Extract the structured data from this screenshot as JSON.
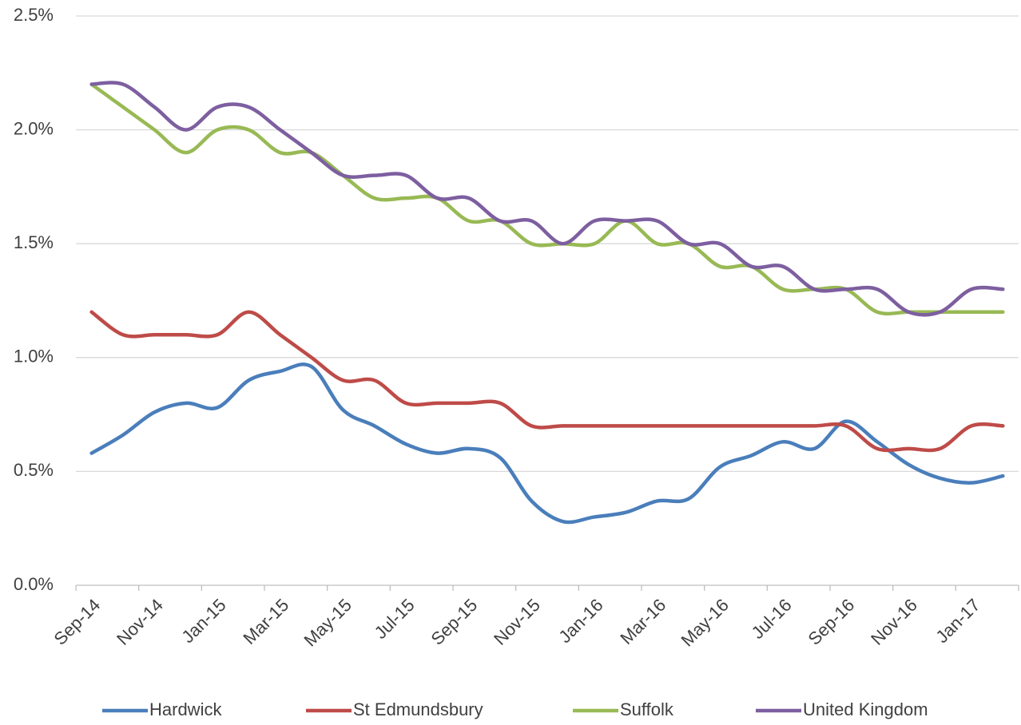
{
  "chart_data": {
    "type": "line",
    "categories": [
      "Sep-14",
      null,
      "Nov-14",
      null,
      "Jan-15",
      null,
      "Mar-15",
      null,
      "May-15",
      null,
      "Jul-15",
      null,
      "Sep-15",
      null,
      "Nov-15",
      null,
      "Jan-16",
      null,
      "Mar-16",
      null,
      "May-16",
      null,
      "Jul-16",
      null,
      "Sep-16",
      null,
      "Nov-16",
      null,
      "Jan-17",
      null
    ],
    "series": [
      {
        "name": "Hardwick",
        "color": "#4a7ebb",
        "values": [
          0.58,
          0.66,
          0.76,
          0.8,
          0.78,
          0.9,
          0.94,
          0.96,
          0.77,
          0.7,
          0.62,
          0.58,
          0.6,
          0.56,
          0.37,
          0.28,
          0.3,
          0.32,
          0.37,
          0.38,
          0.52,
          0.57,
          0.63,
          0.6,
          0.72,
          0.63,
          0.53,
          0.47,
          0.45,
          0.48
        ]
      },
      {
        "name": "St Edmundsbury",
        "color": "#be4b48",
        "values": [
          1.2,
          1.1,
          1.1,
          1.1,
          1.1,
          1.2,
          1.1,
          1.0,
          0.9,
          0.9,
          0.8,
          0.8,
          0.8,
          0.8,
          0.7,
          0.7,
          0.7,
          0.7,
          0.7,
          0.7,
          0.7,
          0.7,
          0.7,
          0.7,
          0.7,
          0.6,
          0.6,
          0.6,
          0.7,
          0.7
        ]
      },
      {
        "name": "Suffolk",
        "color": "#98b954",
        "values": [
          2.2,
          2.1,
          2.0,
          1.9,
          2.0,
          2.0,
          1.9,
          1.9,
          1.8,
          1.7,
          1.7,
          1.7,
          1.6,
          1.6,
          1.5,
          1.5,
          1.5,
          1.6,
          1.5,
          1.5,
          1.4,
          1.4,
          1.3,
          1.3,
          1.3,
          1.2,
          1.2,
          1.2,
          1.2,
          1.2
        ]
      },
      {
        "name": "United Kingdom",
        "color": "#7d5fa0",
        "values": [
          2.2,
          2.2,
          2.1,
          2.0,
          2.1,
          2.1,
          2.0,
          1.9,
          1.8,
          1.8,
          1.8,
          1.7,
          1.7,
          1.6,
          1.6,
          1.5,
          1.6,
          1.6,
          1.6,
          1.5,
          1.5,
          1.4,
          1.4,
          1.3,
          1.3,
          1.3,
          1.2,
          1.2,
          1.3,
          1.3
        ]
      }
    ],
    "ylim": [
      0,
      2.5
    ],
    "yticks": [
      {
        "value": 0,
        "label": "0.0%"
      },
      {
        "value": 0.5,
        "label": "0.5%"
      },
      {
        "value": 1,
        "label": "1.0%"
      },
      {
        "value": 1.5,
        "label": "1.5%"
      },
      {
        "value": 2,
        "label": "2.0%"
      },
      {
        "value": 2.5,
        "label": "2.5%"
      }
    ],
    "grid": true,
    "legend": "bottom"
  }
}
